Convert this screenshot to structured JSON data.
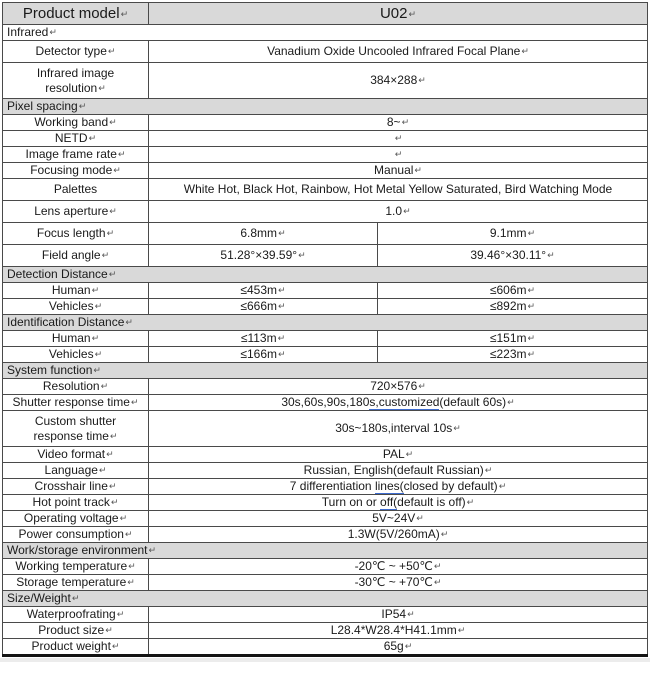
{
  "document": {
    "eol_mark": "↵"
  },
  "colors": {
    "section_shading": "#d9d9d9",
    "table_border": "#4a4a4a",
    "spellcheck_underline": "#3d6bce",
    "bottom_rule": "#141414"
  },
  "table": {
    "header": {
      "label": "Product model",
      "value": "U02"
    },
    "rows": [
      {
        "type": "section",
        "label": "Infrared",
        "shaded": false
      },
      {
        "type": "kv",
        "size": "m",
        "label": "Detector type",
        "value": "Vanadium Oxide Uncooled Infrared Focal Plane"
      },
      {
        "type": "kv",
        "size": "l",
        "label": "Infrared image resolution",
        "value": "384×288"
      },
      {
        "type": "section",
        "label": "Pixel spacing",
        "shaded": true
      },
      {
        "type": "kv",
        "label": "Working band",
        "value": "8~"
      },
      {
        "type": "kv",
        "label": "NETD",
        "value": ""
      },
      {
        "type": "kv",
        "label": "Image frame rate",
        "value": ""
      },
      {
        "type": "kv",
        "label": "Focusing mode",
        "value": "Manual"
      },
      {
        "type": "kv",
        "size": "m",
        "label": "Palettes",
        "value": "White Hot, Black Hot, Rainbow, Hot Metal Yellow Saturated, Bird Watching Mode",
        "no_eol": true,
        "nowrap": true
      },
      {
        "type": "kv",
        "size": "m",
        "label": "Lens aperture",
        "value": "1.0"
      },
      {
        "type": "kv2",
        "size": "m",
        "label": "Focus length",
        "value1": "6.8mm",
        "value2": "9.1mm"
      },
      {
        "type": "kv2",
        "size": "m",
        "label": "Field angle",
        "value1": "51.28°×39.59°",
        "value2": "39.46°×30.11°"
      },
      {
        "type": "section",
        "label": "Detection Distance",
        "shaded": true
      },
      {
        "type": "kv2",
        "label": "Human",
        "value1": "≤453m",
        "value2": "≤606m"
      },
      {
        "type": "kv2",
        "label": "Vehicles",
        "value1": "≤666m",
        "value2": "≤892m"
      },
      {
        "type": "section",
        "label": "Identification Distance",
        "shaded": true
      },
      {
        "type": "kv2",
        "label": "Human",
        "value1": "≤113m",
        "value2": "≤151m"
      },
      {
        "type": "kv2",
        "label": "Vehicles",
        "value1": "≤166m",
        "value2": "≤223m"
      },
      {
        "type": "section",
        "label": "System function",
        "shaded": true
      },
      {
        "type": "kv",
        "label": "Resolution",
        "value": "720×576"
      },
      {
        "type": "kv",
        "label": "Shutter response time",
        "value_parts": [
          {
            "t": "30s,60s,90s,180"
          },
          {
            "t": "s,customized",
            "u": true
          },
          {
            "t": "(default 60s)"
          }
        ]
      },
      {
        "type": "kv",
        "size": "l",
        "label": "Custom shutter response time",
        "value": "30s~180s,interval 10s"
      },
      {
        "type": "kv",
        "label": "Video format",
        "value": "PAL"
      },
      {
        "type": "kv",
        "label": "Language",
        "value": "Russian, English(default Russian)"
      },
      {
        "type": "kv",
        "label": "Crosshair line",
        "value_parts": [
          {
            "t": "7 differentiation "
          },
          {
            "t": "lines(",
            "u": true
          },
          {
            "t": "closed by default)"
          }
        ]
      },
      {
        "type": "kv",
        "label": "Hot point track",
        "value_parts": [
          {
            "t": "Turn on or "
          },
          {
            "t": "off(",
            "u": true
          },
          {
            "t": "default is off)"
          }
        ]
      },
      {
        "type": "kv",
        "label": "Operating voltage",
        "value": "5V~24V"
      },
      {
        "type": "kv",
        "label": "Power consumption",
        "value": "1.3W(5V/260mA)"
      },
      {
        "type": "section",
        "label": "Work/storage environment",
        "shaded": true
      },
      {
        "type": "kv",
        "label": "Working temperature",
        "value": "-20℃ ~ +50℃"
      },
      {
        "type": "kv",
        "label": "Storage temperature",
        "value": "-30℃ ~ +70℃"
      },
      {
        "type": "section",
        "label": "Size/Weight",
        "shaded": true
      },
      {
        "type": "kv",
        "label": "Waterproofrating",
        "value": "IP54"
      },
      {
        "type": "kv",
        "label": "Product size",
        "value": "L28.4*W28.4*H41.1mm"
      },
      {
        "type": "kv",
        "label": "Product weight",
        "value": "65g"
      }
    ]
  }
}
